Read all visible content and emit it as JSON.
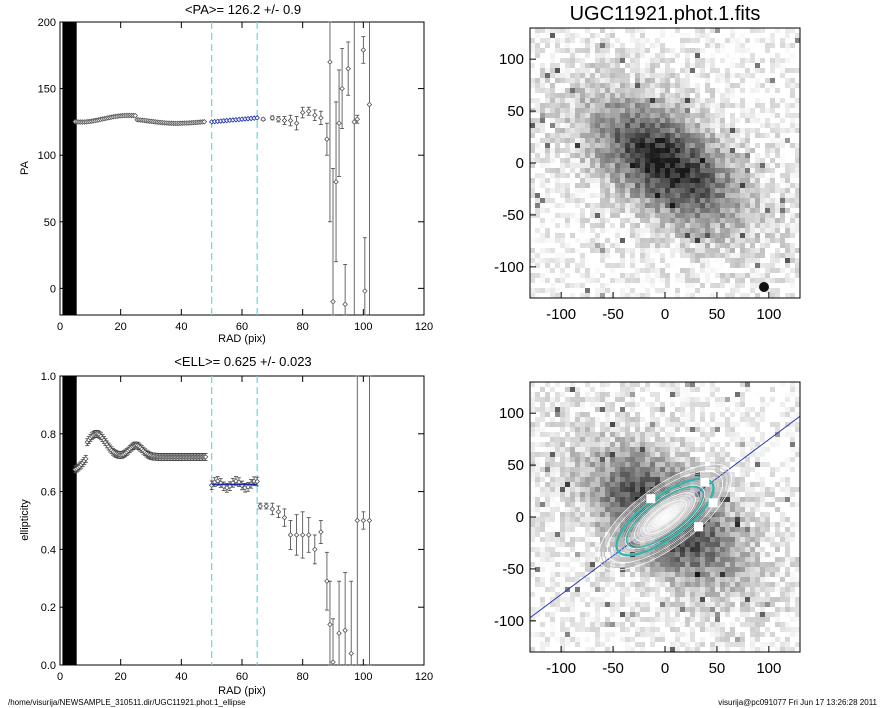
{
  "footer": {
    "left": "/home/visurija/NEWSAMPLE_310511.dir/UGC11921.phot.1_ellipse",
    "right": "visurija@pc091077  Fri Jun 17 13:26:28 2011"
  },
  "chart_data": [
    {
      "id": "pa",
      "type": "scatter",
      "title": "<PA>= 126.2 +/-   0.9",
      "xlabel": "RAD (pix)",
      "ylabel": "PA",
      "xlim": [
        0,
        120
      ],
      "ylim": [
        -20,
        200
      ],
      "xticks": [
        "0",
        "20",
        "40",
        "60",
        "80",
        "100",
        "120"
      ],
      "yticks": [
        "0",
        "50",
        "100",
        "150",
        "200"
      ],
      "fit_range": [
        50,
        65
      ],
      "mean_value": 126.2,
      "grid": false,
      "colors": {
        "points": "#555555",
        "fit": "#1a2aa8",
        "range": "#66d9e0",
        "band": "#000000"
      }
    },
    {
      "id": "ell",
      "type": "scatter",
      "title": "<ELL>= 0.625 +/-  0.023",
      "xlabel": "RAD (pix)",
      "ylabel": "ellipticity",
      "xlim": [
        0,
        120
      ],
      "ylim": [
        0,
        1
      ],
      "xticks": [
        "0",
        "20",
        "40",
        "60",
        "80",
        "100",
        "120"
      ],
      "yticks": [
        "0.0",
        "0.2",
        "0.4",
        "0.6",
        "0.8",
        "1.0"
      ],
      "fit_range": [
        50,
        65
      ],
      "mean_value": 0.625,
      "grid": false,
      "colors": {
        "points": "#555555",
        "fit": "#1a2aa8",
        "range": "#66d9e0",
        "band": "#000000"
      }
    }
  ],
  "images": [
    {
      "id": "galaxy",
      "title": "UGC11921.phot.1.fits",
      "xlim": [
        -130,
        130
      ],
      "ylim": [
        -130,
        130
      ],
      "xticks": [
        "-100",
        "-50",
        "0",
        "50",
        "100"
      ],
      "yticks": [
        "-100",
        "-50",
        "0",
        "50",
        "100"
      ]
    },
    {
      "id": "model",
      "title": "",
      "xlim": [
        -130,
        130
      ],
      "ylim": [
        -130,
        130
      ],
      "xticks": [
        "-100",
        "-50",
        "0",
        "50",
        "100"
      ],
      "yticks": [
        "-100",
        "-50",
        "0",
        "50",
        "100"
      ],
      "colors": {
        "line": "#2a3ab0",
        "contour": "#ffffff",
        "teal": "#2fb5ad"
      }
    }
  ]
}
